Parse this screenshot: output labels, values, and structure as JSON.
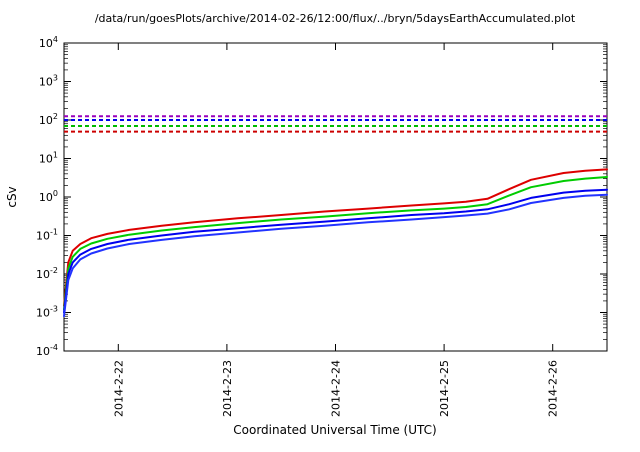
{
  "chart_data": {
    "type": "line",
    "title": "/data/run/goesPlots/archive/2014-02-26/12:00/flux/../bryn/5daysEarthAccumulated.plot",
    "xlabel": "Coordinated Universal Time (UTC)",
    "ylabel": "cSv",
    "y_scale": "log10",
    "ylim_exponents": [
      -4,
      4
    ],
    "x_range_days": [
      0,
      5
    ],
    "grid": false,
    "legend": "none",
    "x_ticks": [
      {
        "pos": 0.5,
        "label": "2014-2-22"
      },
      {
        "pos": 1.5,
        "label": "2014-2-23"
      },
      {
        "pos": 2.5,
        "label": "2014-2-24"
      },
      {
        "pos": 3.5,
        "label": "2014-2-25"
      },
      {
        "pos": 4.5,
        "label": "2014-2-26"
      }
    ],
    "thresholds": [
      {
        "name": "limit-purple",
        "color": "#9900bb",
        "value": 125,
        "style": "dashed"
      },
      {
        "name": "limit-blue",
        "color": "#0000ee",
        "value": 100,
        "style": "dashed"
      },
      {
        "name": "limit-green",
        "color": "#00bb00",
        "value": 70,
        "style": "dashed"
      },
      {
        "name": "limit-red",
        "color": "#cc0000",
        "value": 50,
        "style": "dashed"
      }
    ],
    "x": [
      0,
      0.04,
      0.08,
      0.15,
      0.25,
      0.4,
      0.6,
      0.9,
      1.2,
      1.6,
      2.0,
      2.4,
      2.8,
      3.2,
      3.5,
      3.7,
      3.9,
      4.1,
      4.3,
      4.6,
      4.8,
      5.0
    ],
    "series": [
      {
        "name": "accumulated-red",
        "color": "#dd0000",
        "y": [
          0.0015,
          0.02,
          0.04,
          0.06,
          0.085,
          0.11,
          0.14,
          0.18,
          0.22,
          0.28,
          0.34,
          0.42,
          0.5,
          0.6,
          0.68,
          0.75,
          0.9,
          1.6,
          2.8,
          4.2,
          4.8,
          5.2
        ]
      },
      {
        "name": "accumulated-green",
        "color": "#00cc00",
        "y": [
          0.0012,
          0.014,
          0.028,
          0.045,
          0.062,
          0.082,
          0.105,
          0.135,
          0.165,
          0.21,
          0.26,
          0.31,
          0.38,
          0.45,
          0.5,
          0.55,
          0.65,
          1.1,
          1.8,
          2.6,
          3.0,
          3.3
        ]
      },
      {
        "name": "accumulated-blue-upper",
        "color": "#0000ee",
        "y": [
          0.001,
          0.01,
          0.02,
          0.032,
          0.045,
          0.06,
          0.078,
          0.1,
          0.125,
          0.155,
          0.19,
          0.23,
          0.28,
          0.34,
          0.38,
          0.42,
          0.48,
          0.65,
          0.95,
          1.3,
          1.45,
          1.55
        ]
      },
      {
        "name": "accumulated-blue-lower",
        "color": "#2233ff",
        "y": [
          0.0008,
          0.007,
          0.014,
          0.024,
          0.034,
          0.046,
          0.06,
          0.077,
          0.096,
          0.12,
          0.15,
          0.18,
          0.22,
          0.26,
          0.3,
          0.33,
          0.37,
          0.48,
          0.7,
          0.95,
          1.08,
          1.15
        ]
      }
    ]
  }
}
